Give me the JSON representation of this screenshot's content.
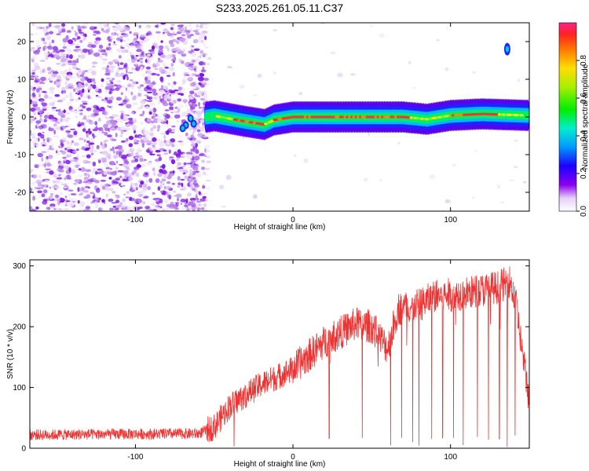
{
  "title": "S233.2025.261.05.11.C37",
  "chart_data": [
    {
      "type": "heatmap",
      "xlabel": "Height of straight line (km)",
      "ylabel": "Frequency (Hz)",
      "xlim": [
        -167,
        150
      ],
      "ylim": [
        -25,
        25
      ],
      "xticks": [
        -100,
        0,
        100
      ],
      "yticks": [
        -20,
        -10,
        0,
        10,
        20
      ],
      "colorbar": {
        "label": "Normalized spectral amplitude",
        "range": [
          0,
          1
        ],
        "ticks": [
          "0.0",
          "0.2",
          "0.4",
          "0.6",
          "0.8"
        ]
      },
      "features": {
        "noise_region_x": [
          -167,
          -50
        ],
        "signal_line": [
          {
            "x": -68,
            "f": -1.5
          },
          {
            "x": -62,
            "f": -0.5
          },
          {
            "x": -50,
            "f": 0.3
          },
          {
            "x": -30,
            "f": -1.2
          },
          {
            "x": -18,
            "f": -2.0
          },
          {
            "x": -12,
            "f": -0.8
          },
          {
            "x": 0,
            "f": 0
          },
          {
            "x": 40,
            "f": 0
          },
          {
            "x": 70,
            "f": 0
          },
          {
            "x": 85,
            "f": -0.6
          },
          {
            "x": 100,
            "f": 0.4
          },
          {
            "x": 120,
            "f": 0.8
          },
          {
            "x": 150,
            "f": 0.4
          }
        ],
        "spot": {
          "x": 136,
          "f": 18
        }
      }
    },
    {
      "type": "line",
      "xlabel": "Height of straight line (km)",
      "ylabel": "SNR (10 * v/v)",
      "xlim": [
        -167,
        150
      ],
      "ylim": [
        0,
        310
      ],
      "xticks": [
        -100,
        0,
        100
      ],
      "yticks": [
        0,
        100,
        200,
        300
      ],
      "color": "#ee3333",
      "trend": [
        {
          "x": -167,
          "y": 22
        },
        {
          "x": -60,
          "y": 24
        },
        {
          "x": -50,
          "y": 35
        },
        {
          "x": -40,
          "y": 70
        },
        {
          "x": -20,
          "y": 105
        },
        {
          "x": 0,
          "y": 130
        },
        {
          "x": 20,
          "y": 175
        },
        {
          "x": 40,
          "y": 205
        },
        {
          "x": 50,
          "y": 200
        },
        {
          "x": 60,
          "y": 165
        },
        {
          "x": 67,
          "y": 230
        },
        {
          "x": 80,
          "y": 235
        },
        {
          "x": 90,
          "y": 250
        },
        {
          "x": 110,
          "y": 255
        },
        {
          "x": 130,
          "y": 265
        },
        {
          "x": 138,
          "y": 275
        },
        {
          "x": 142,
          "y": 230
        },
        {
          "x": 146,
          "y": 150
        },
        {
          "x": 150,
          "y": 80
        }
      ],
      "dropouts_x": [
        23,
        44,
        62,
        69,
        76,
        80,
        88,
        95,
        102,
        108,
        117,
        124,
        131,
        136,
        141
      ]
    }
  ]
}
